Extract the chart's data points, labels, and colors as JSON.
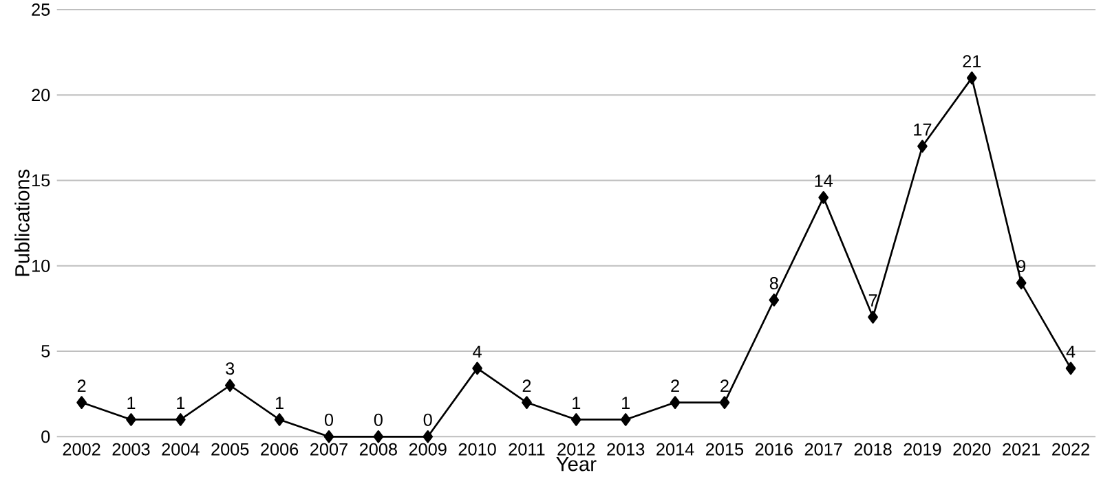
{
  "chart_data": {
    "type": "line",
    "xlabel": "Year",
    "ylabel": "Publications",
    "categories": [
      "2002",
      "2003",
      "2004",
      "2005",
      "2006",
      "2007",
      "2008",
      "2009",
      "2010",
      "2011",
      "2012",
      "2013",
      "2014",
      "2015",
      "2016",
      "2017",
      "2018",
      "2019",
      "2020",
      "2021",
      "2022"
    ],
    "series": [
      {
        "color": "#000000",
        "values": [
          2,
          1,
          1,
          3,
          1,
          0,
          0,
          0,
          4,
          2,
          1,
          1,
          2,
          2,
          8,
          14,
          7,
          17,
          21,
          9,
          4
        ]
      }
    ],
    "ylim": [
      0,
      25
    ],
    "yticks": [
      0,
      5,
      10,
      15,
      20,
      25
    ],
    "grid": "y",
    "marker": "diamond",
    "line_style": "solid",
    "data_labels": true
  }
}
